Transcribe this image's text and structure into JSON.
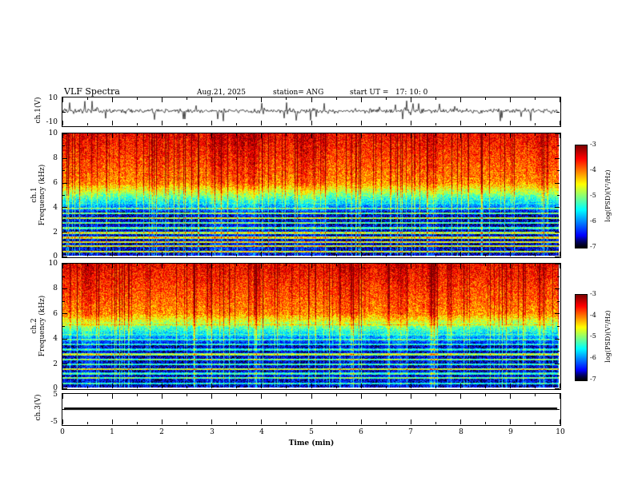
{
  "header": {
    "title": "VLF Spectra",
    "date": "Aug.21, 2025",
    "station": "station= ANG",
    "start_ut": "start UT =   17: 10: 0"
  },
  "x_axis": {
    "label": "Time (min)",
    "range": [
      0,
      10
    ],
    "ticks": [
      "0",
      "1",
      "2",
      "3",
      "4",
      "5",
      "6",
      "7",
      "8",
      "9",
      "10"
    ]
  },
  "ch1_wave": {
    "ylabel": "ch.1(V)",
    "ytop": "10",
    "ybottom": "-10"
  },
  "ch1_spec": {
    "ylabel_ch": "ch.1",
    "ylabel_freq": "Frequency (kHz)",
    "yticks": [
      "10",
      "8",
      "6",
      "4",
      "2",
      "0"
    ]
  },
  "ch2_spec": {
    "ylabel_ch": "ch.2",
    "ylabel_freq": "Frequency (kHz)",
    "yticks": [
      "10",
      "8",
      "6",
      "4",
      "2",
      "0"
    ]
  },
  "ch3_wave": {
    "ylabel": "ch.3(V)",
    "ytop": "5",
    "ybottom": "-5"
  },
  "colorbar": {
    "label": "log(PSD)(V²/Hz)",
    "ticks": [
      "-3",
      "-4",
      "-5",
      "-6",
      "-7"
    ],
    "range": [
      -7,
      -3
    ],
    "colormap": "jet (black-blue-cyan-green-yellow-red)"
  },
  "chart_data": [
    {
      "type": "line",
      "name": "ch.1 voltage time series",
      "xlabel": "Time (min)",
      "x_range": [
        0,
        10
      ],
      "ylabel": "ch.1(V)",
      "y_range": [
        -10,
        10
      ],
      "description": "Broadband VLF noise trace centered at 0 V, typical excursion about ±2 V, with frequent impulsive sferic spikes reaching roughly ±5 to ±9 V across the full 10 minutes."
    },
    {
      "type": "heatmap",
      "name": "ch.1 spectrogram",
      "xlabel": "Time (min)",
      "x_range": [
        0,
        10
      ],
      "ylabel": "Frequency (kHz)",
      "y_range": [
        0,
        10
      ],
      "z_label": "log(PSD)(V²/Hz)",
      "z_range": [
        -7,
        -3
      ],
      "colormap": "jet",
      "pattern": "High PSD (-4 to -3, red/orange/yellow) above ~5-6 kHz; green/yellow transition band 4-6 kHz; low PSD (-7 to -6, dark blue/black) below ~4 kHz; many narrowband horizontal lines (green/cyan) below ~4 kHz; dense broadband vertical sferic stripes spanning all frequencies throughout the record."
    },
    {
      "type": "heatmap",
      "name": "ch.2 spectrogram",
      "xlabel": "Time (min)",
      "x_range": [
        0,
        10
      ],
      "ylabel": "Frequency (kHz)",
      "y_range": [
        0,
        10
      ],
      "z_label": "log(PSD)(V²/Hz)",
      "z_range": [
        -7,
        -3
      ],
      "colormap": "jet",
      "pattern": "Same structure as ch.1: red/orange high-PSD band above ~5-6 kHz, blue/black low-PSD region below 4 kHz with horizontal narrowband lines and vertical broadband sferic stripes."
    },
    {
      "type": "line",
      "name": "ch.3 voltage time series",
      "xlabel": "Time (min)",
      "x_range": [
        0,
        10
      ],
      "ylabel": "ch.3(V)",
      "y_range": [
        -5,
        5
      ],
      "values": "constant ≈ 0 V",
      "description": "Flat thick black line at approximately 0 V for the entire 10 minutes (no signal on channel 3)."
    }
  ]
}
